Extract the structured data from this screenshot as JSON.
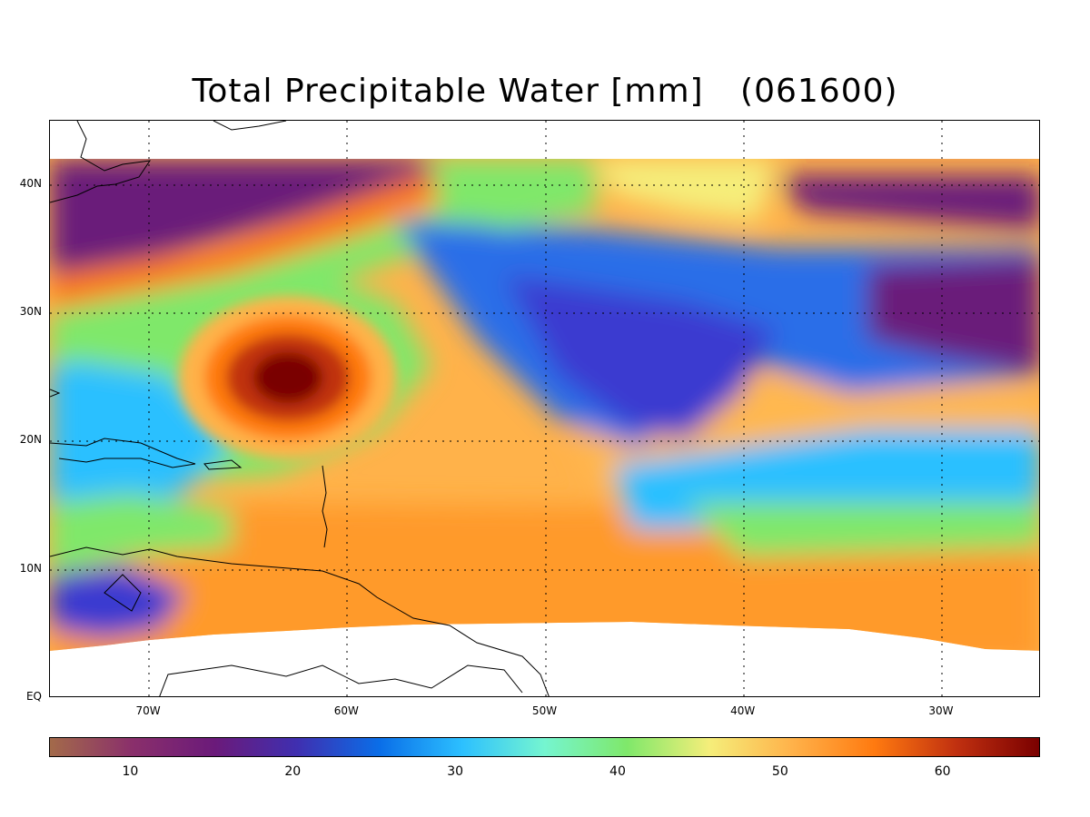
{
  "title": {
    "main": "Total Precipitable Water [mm]",
    "date": "(061600)"
  },
  "map": {
    "lon_labels": [
      "70W",
      "60W",
      "50W",
      "40W",
      "30W"
    ],
    "lat_labels": [
      "40N",
      "30N",
      "20N",
      "10N",
      "EQ"
    ],
    "lon_range": [
      -75,
      -25
    ],
    "lat_range": [
      0,
      45
    ],
    "grid": "dotted",
    "features": [
      {
        "name": "hurricane-core",
        "lon": -63,
        "lat": 25,
        "value_mm": 65
      },
      {
        "name": "dry-air-north",
        "value_mm": 20
      },
      {
        "name": "moist-tropical-belt",
        "value_mm": 55
      }
    ]
  },
  "colorbar": {
    "min": 5,
    "max": 66,
    "tick_labels": [
      "10",
      "20",
      "30",
      "40",
      "50",
      "60"
    ],
    "colors": [
      "#a36a4a",
      "#8a2f6b",
      "#6b1a7a",
      "#3f2fb0",
      "#0a6ee8",
      "#2cc0ff",
      "#75f5d0",
      "#7fe86a",
      "#f5ee7a",
      "#ffb24a",
      "#ff7a10",
      "#c03010",
      "#7a0000"
    ]
  }
}
